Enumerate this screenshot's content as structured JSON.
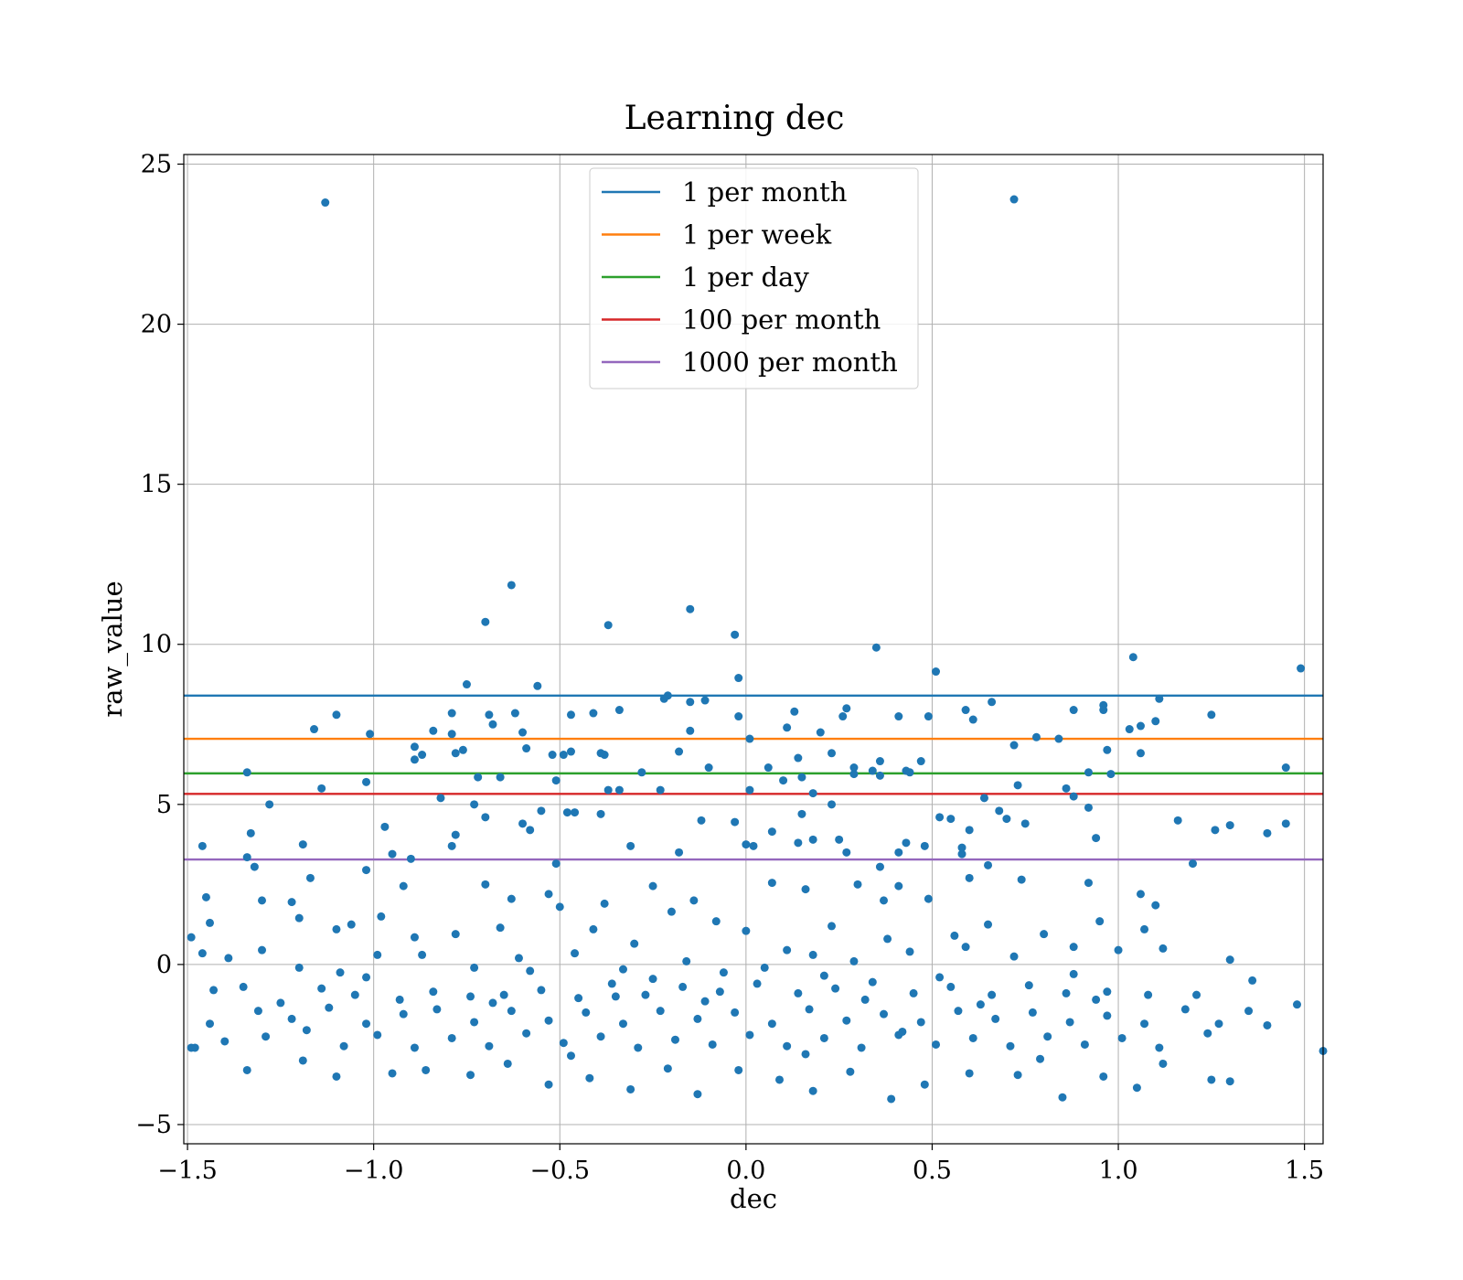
{
  "chart_data": {
    "type": "scatter",
    "title": "Learning dec",
    "xlabel": "dec",
    "ylabel": "raw_value",
    "xlim": [
      -1.51,
      1.55
    ],
    "ylim": [
      -5.6,
      25.3
    ],
    "xticks": [
      -1.5,
      -1.0,
      -0.5,
      0.0,
      0.5,
      1.0,
      1.5
    ],
    "xtick_labels": [
      "−1.5",
      "−1.0",
      "−0.5",
      "0.0",
      "0.5",
      "1.0",
      "1.5"
    ],
    "yticks": [
      -5,
      0,
      5,
      10,
      15,
      20,
      25
    ],
    "ytick_labels": [
      "−5",
      "0",
      "5",
      "10",
      "15",
      "20",
      "25"
    ],
    "grid": true,
    "legend_position": "top-center",
    "point_color": "#1f77b4",
    "hlines": [
      {
        "name": "1 per month",
        "y": 8.4,
        "color": "#1f77b4"
      },
      {
        "name": "1 per week",
        "y": 7.05,
        "color": "#ff7f0e"
      },
      {
        "name": "1 per day",
        "y": 5.97,
        "color": "#2ca02c"
      },
      {
        "name": "100 per month",
        "y": 5.33,
        "color": "#d62728"
      },
      {
        "name": "1000 per month",
        "y": 3.28,
        "color": "#9467bd"
      }
    ],
    "points": [
      [
        -1.13,
        23.8
      ],
      [
        0.72,
        23.9
      ],
      [
        -0.63,
        11.85
      ],
      [
        -0.7,
        10.7
      ],
      [
        -0.37,
        10.6
      ],
      [
        -0.15,
        11.1
      ],
      [
        -0.03,
        10.3
      ],
      [
        0.35,
        9.9
      ],
      [
        0.51,
        9.15
      ],
      [
        1.04,
        9.6
      ],
      [
        1.49,
        9.25
      ],
      [
        -0.02,
        8.95
      ],
      [
        -0.75,
        8.75
      ],
      [
        -0.56,
        8.7
      ],
      [
        -0.21,
        8.4
      ],
      [
        -0.22,
        8.3
      ],
      [
        -0.15,
        8.2
      ],
      [
        -0.11,
        8.25
      ],
      [
        0.27,
        8.0
      ],
      [
        0.66,
        8.2
      ],
      [
        0.96,
        8.1
      ],
      [
        1.11,
        8.3
      ],
      [
        -1.1,
        7.8
      ],
      [
        -0.79,
        7.85
      ],
      [
        -0.69,
        7.8
      ],
      [
        -0.62,
        7.85
      ],
      [
        -0.47,
        7.8
      ],
      [
        -0.41,
        7.85
      ],
      [
        -0.34,
        7.95
      ],
      [
        -0.02,
        7.75
      ],
      [
        0.13,
        7.9
      ],
      [
        0.26,
        7.75
      ],
      [
        0.41,
        7.75
      ],
      [
        0.49,
        7.75
      ],
      [
        0.59,
        7.95
      ],
      [
        0.61,
        7.65
      ],
      [
        0.88,
        7.95
      ],
      [
        0.96,
        7.95
      ],
      [
        1.25,
        7.8
      ],
      [
        -1.16,
        7.35
      ],
      [
        -1.01,
        7.2
      ],
      [
        -0.84,
        7.3
      ],
      [
        -0.79,
        7.2
      ],
      [
        -0.68,
        7.5
      ],
      [
        -0.6,
        7.25
      ],
      [
        -0.47,
        6.65
      ],
      [
        -0.38,
        6.55
      ],
      [
        -0.15,
        7.3
      ],
      [
        0.01,
        7.05
      ],
      [
        0.11,
        7.4
      ],
      [
        0.2,
        7.25
      ],
      [
        0.72,
        6.85
      ],
      [
        0.78,
        7.1
      ],
      [
        0.84,
        7.05
      ],
      [
        1.03,
        7.35
      ],
      [
        1.06,
        7.45
      ],
      [
        1.1,
        7.6
      ],
      [
        -0.89,
        6.8
      ],
      [
        -0.87,
        6.55
      ],
      [
        -0.78,
        6.6
      ],
      [
        -0.76,
        6.7
      ],
      [
        -0.59,
        6.75
      ],
      [
        -0.52,
        6.55
      ],
      [
        -0.49,
        6.55
      ],
      [
        -0.39,
        6.6
      ],
      [
        -0.18,
        6.65
      ],
      [
        0.06,
        6.15
      ],
      [
        0.14,
        6.45
      ],
      [
        0.23,
        6.6
      ],
      [
        0.29,
        6.15
      ],
      [
        0.36,
        6.35
      ],
      [
        0.43,
        6.05
      ],
      [
        0.47,
        6.35
      ],
      [
        0.97,
        6.7
      ],
      [
        1.06,
        6.6
      ],
      [
        1.45,
        6.15
      ],
      [
        -1.34,
        6.0
      ],
      [
        -0.89,
        6.4
      ],
      [
        -0.66,
        5.85
      ],
      [
        -0.51,
        5.75
      ],
      [
        -0.28,
        6.0
      ],
      [
        -0.1,
        6.15
      ],
      [
        0.1,
        5.75
      ],
      [
        0.15,
        5.85
      ],
      [
        0.29,
        5.95
      ],
      [
        0.34,
        6.05
      ],
      [
        0.44,
        6.0
      ],
      [
        0.92,
        6.0
      ],
      [
        0.98,
        5.95
      ],
      [
        -1.14,
        5.5
      ],
      [
        -1.02,
        5.7
      ],
      [
        -0.82,
        5.2
      ],
      [
        -0.72,
        5.85
      ],
      [
        -0.37,
        5.45
      ],
      [
        -0.34,
        5.45
      ],
      [
        -0.23,
        5.45
      ],
      [
        0.01,
        5.45
      ],
      [
        0.18,
        5.35
      ],
      [
        0.36,
        5.9
      ],
      [
        0.73,
        5.6
      ],
      [
        0.86,
        5.5
      ],
      [
        0.88,
        5.25
      ],
      [
        -1.28,
        5.0
      ],
      [
        -0.73,
        5.0
      ],
      [
        -0.7,
        4.6
      ],
      [
        -0.55,
        4.8
      ],
      [
        -0.48,
        4.75
      ],
      [
        -0.46,
        4.75
      ],
      [
        -0.39,
        4.7
      ],
      [
        -0.12,
        4.5
      ],
      [
        -0.03,
        4.45
      ],
      [
        0.15,
        4.7
      ],
      [
        0.23,
        5.0
      ],
      [
        0.52,
        4.6
      ],
      [
        0.55,
        4.55
      ],
      [
        0.64,
        5.2
      ],
      [
        0.68,
        4.8
      ],
      [
        0.7,
        4.55
      ],
      [
        0.75,
        4.4
      ],
      [
        0.92,
        4.9
      ],
      [
        1.16,
        4.5
      ],
      [
        1.26,
        4.2
      ],
      [
        1.3,
        4.35
      ],
      [
        1.4,
        4.1
      ],
      [
        1.45,
        4.4
      ],
      [
        -1.46,
        3.7
      ],
      [
        -1.33,
        4.1
      ],
      [
        -1.19,
        3.75
      ],
      [
        -0.97,
        4.3
      ],
      [
        -0.79,
        3.7
      ],
      [
        -0.78,
        4.05
      ],
      [
        -0.6,
        4.4
      ],
      [
        -0.58,
        4.2
      ],
      [
        -0.31,
        3.7
      ],
      [
        -0.18,
        3.5
      ],
      [
        0.07,
        4.15
      ],
      [
        0.18,
        3.9
      ],
      [
        0.25,
        3.9
      ],
      [
        0.41,
        3.5
      ],
      [
        0.43,
        3.8
      ],
      [
        0.6,
        4.2
      ],
      [
        0.48,
        3.7
      ],
      [
        0.58,
        3.45
      ],
      [
        0.94,
        3.95
      ],
      [
        -1.34,
        3.35
      ],
      [
        -1.32,
        3.05
      ],
      [
        -1.02,
        2.95
      ],
      [
        -0.95,
        3.45
      ],
      [
        -0.9,
        3.3
      ],
      [
        -0.51,
        3.15
      ],
      [
        0.0,
        3.75
      ],
      [
        0.02,
        3.7
      ],
      [
        0.14,
        3.8
      ],
      [
        0.27,
        3.5
      ],
      [
        0.36,
        3.05
      ],
      [
        0.58,
        3.65
      ],
      [
        0.65,
        3.1
      ],
      [
        1.2,
        3.15
      ],
      [
        -1.45,
        2.1
      ],
      [
        -1.3,
        2.0
      ],
      [
        -1.17,
        2.7
      ],
      [
        -0.92,
        2.45
      ],
      [
        -0.7,
        2.5
      ],
      [
        -0.63,
        2.05
      ],
      [
        -0.53,
        2.2
      ],
      [
        -0.38,
        1.9
      ],
      [
        -0.25,
        2.45
      ],
      [
        -0.14,
        2.0
      ],
      [
        0.07,
        2.55
      ],
      [
        0.16,
        2.35
      ],
      [
        0.3,
        2.5
      ],
      [
        0.37,
        2.0
      ],
      [
        0.41,
        2.45
      ],
      [
        0.49,
        2.05
      ],
      [
        0.6,
        2.7
      ],
      [
        0.74,
        2.65
      ],
      [
        0.92,
        2.55
      ],
      [
        1.06,
        2.2
      ],
      [
        1.1,
        1.85
      ],
      [
        -1.49,
        0.85
      ],
      [
        -1.44,
        1.3
      ],
      [
        -1.22,
        1.95
      ],
      [
        -1.2,
        1.45
      ],
      [
        -1.1,
        1.1
      ],
      [
        -1.06,
        1.25
      ],
      [
        -0.98,
        1.5
      ],
      [
        -0.89,
        0.85
      ],
      [
        -0.78,
        0.95
      ],
      [
        -0.66,
        1.15
      ],
      [
        -0.5,
        1.8
      ],
      [
        -0.41,
        1.1
      ],
      [
        -0.3,
        0.65
      ],
      [
        -0.2,
        1.65
      ],
      [
        -0.08,
        1.35
      ],
      [
        0.0,
        1.05
      ],
      [
        0.11,
        0.45
      ],
      [
        0.23,
        1.2
      ],
      [
        0.38,
        0.8
      ],
      [
        0.56,
        0.9
      ],
      [
        0.65,
        1.25
      ],
      [
        0.8,
        0.95
      ],
      [
        0.95,
        1.35
      ],
      [
        1.07,
        1.1
      ],
      [
        -1.46,
        0.35
      ],
      [
        -1.39,
        0.2
      ],
      [
        -1.3,
        0.45
      ],
      [
        -1.2,
        -0.1
      ],
      [
        -1.09,
        -0.25
      ],
      [
        -0.99,
        0.3
      ],
      [
        -0.87,
        0.3
      ],
      [
        -0.73,
        -0.1
      ],
      [
        -0.61,
        0.2
      ],
      [
        -0.46,
        0.35
      ],
      [
        -0.33,
        -0.15
      ],
      [
        -0.16,
        0.1
      ],
      [
        -0.06,
        -0.25
      ],
      [
        0.05,
        -0.1
      ],
      [
        0.18,
        0.3
      ],
      [
        0.29,
        0.1
      ],
      [
        0.44,
        0.4
      ],
      [
        0.59,
        0.55
      ],
      [
        0.72,
        0.25
      ],
      [
        0.88,
        0.55
      ],
      [
        1.0,
        0.45
      ],
      [
        1.12,
        0.5
      ],
      [
        1.3,
        0.15
      ],
      [
        -1.43,
        -0.8
      ],
      [
        -1.35,
        -0.7
      ],
      [
        -1.25,
        -1.2
      ],
      [
        -1.14,
        -0.75
      ],
      [
        -1.05,
        -0.95
      ],
      [
        -0.93,
        -1.1
      ],
      [
        -0.84,
        -0.85
      ],
      [
        -0.74,
        -1.0
      ],
      [
        -0.65,
        -0.95
      ],
      [
        -0.55,
        -0.8
      ],
      [
        -0.45,
        -1.05
      ],
      [
        -0.36,
        -0.6
      ],
      [
        -0.27,
        -0.95
      ],
      [
        -0.17,
        -0.7
      ],
      [
        -0.07,
        -0.85
      ],
      [
        0.03,
        -0.6
      ],
      [
        0.14,
        -0.9
      ],
      [
        0.24,
        -0.75
      ],
      [
        0.34,
        -0.55
      ],
      [
        0.45,
        -0.9
      ],
      [
        0.55,
        -0.7
      ],
      [
        0.66,
        -0.95
      ],
      [
        0.76,
        -0.65
      ],
      [
        0.86,
        -0.9
      ],
      [
        0.97,
        -0.85
      ],
      [
        1.08,
        -0.95
      ],
      [
        1.21,
        -0.95
      ],
      [
        1.36,
        -0.5
      ],
      [
        -1.44,
        -1.85
      ],
      [
        -1.31,
        -1.45
      ],
      [
        -1.22,
        -1.7
      ],
      [
        -1.12,
        -1.35
      ],
      [
        -1.02,
        -1.85
      ],
      [
        -0.92,
        -1.55
      ],
      [
        -0.83,
        -1.4
      ],
      [
        -0.73,
        -1.8
      ],
      [
        -0.63,
        -1.45
      ],
      [
        -0.53,
        -1.75
      ],
      [
        -0.43,
        -1.5
      ],
      [
        -0.33,
        -1.85
      ],
      [
        -0.23,
        -1.45
      ],
      [
        -0.13,
        -1.7
      ],
      [
        -0.03,
        -1.5
      ],
      [
        0.07,
        -1.85
      ],
      [
        0.17,
        -1.4
      ],
      [
        0.27,
        -1.75
      ],
      [
        0.37,
        -1.55
      ],
      [
        0.47,
        -1.8
      ],
      [
        0.57,
        -1.45
      ],
      [
        0.67,
        -1.7
      ],
      [
        0.77,
        -1.5
      ],
      [
        0.87,
        -1.8
      ],
      [
        0.97,
        -1.6
      ],
      [
        1.07,
        -1.85
      ],
      [
        1.18,
        -1.4
      ],
      [
        1.27,
        -1.85
      ],
      [
        1.35,
        -1.45
      ],
      [
        1.48,
        -1.25
      ],
      [
        -1.48,
        -2.6
      ],
      [
        -1.4,
        -2.4
      ],
      [
        -1.29,
        -2.25
      ],
      [
        -1.18,
        -2.05
      ],
      [
        -1.08,
        -2.55
      ],
      [
        -0.99,
        -2.2
      ],
      [
        -0.89,
        -2.6
      ],
      [
        -0.79,
        -2.3
      ],
      [
        -0.69,
        -2.55
      ],
      [
        -0.59,
        -2.15
      ],
      [
        -0.49,
        -2.45
      ],
      [
        -0.39,
        -2.25
      ],
      [
        -0.29,
        -2.6
      ],
      [
        -0.19,
        -2.35
      ],
      [
        -0.09,
        -2.5
      ],
      [
        0.01,
        -2.2
      ],
      [
        0.11,
        -2.55
      ],
      [
        0.21,
        -2.3
      ],
      [
        0.31,
        -2.6
      ],
      [
        0.41,
        -2.2
      ],
      [
        0.51,
        -2.5
      ],
      [
        0.61,
        -2.3
      ],
      [
        0.71,
        -2.55
      ],
      [
        0.81,
        -2.25
      ],
      [
        0.91,
        -2.5
      ],
      [
        1.01,
        -2.3
      ],
      [
        1.11,
        -2.6
      ],
      [
        1.24,
        -2.15
      ],
      [
        1.4,
        -1.9
      ],
      [
        1.55,
        -2.7
      ],
      [
        -1.34,
        -3.3
      ],
      [
        -1.19,
        -3.0
      ],
      [
        -1.1,
        -3.5
      ],
      [
        -0.95,
        -3.4
      ],
      [
        -0.86,
        -3.3
      ],
      [
        -0.74,
        -3.45
      ],
      [
        -0.64,
        -3.1
      ],
      [
        -0.53,
        -3.75
      ],
      [
        -0.42,
        -3.55
      ],
      [
        -0.31,
        -3.9
      ],
      [
        -0.21,
        -3.25
      ],
      [
        -0.13,
        -4.05
      ],
      [
        -0.02,
        -3.3
      ],
      [
        0.09,
        -3.6
      ],
      [
        0.18,
        -3.95
      ],
      [
        0.28,
        -3.35
      ],
      [
        0.39,
        -4.2
      ],
      [
        0.48,
        -3.75
      ],
      [
        0.6,
        -3.4
      ],
      [
        0.73,
        -3.45
      ],
      [
        0.85,
        -4.15
      ],
      [
        0.96,
        -3.5
      ],
      [
        1.05,
        -3.85
      ],
      [
        1.12,
        -3.1
      ],
      [
        1.25,
        -3.6
      ],
      [
        1.3,
        -3.65
      ],
      [
        -1.49,
        -2.6
      ],
      [
        -0.68,
        -1.2
      ],
      [
        -0.35,
        -1.0
      ],
      [
        0.32,
        -1.1
      ],
      [
        0.63,
        -1.25
      ],
      [
        0.94,
        -1.1
      ],
      [
        -0.58,
        -0.2
      ],
      [
        0.21,
        -0.35
      ],
      [
        0.52,
        -0.4
      ],
      [
        -0.11,
        -1.15
      ],
      [
        0.42,
        -2.1
      ],
      [
        -0.47,
        -2.85
      ],
      [
        0.16,
        -2.8
      ],
      [
        0.79,
        -2.95
      ],
      [
        -1.02,
        -0.4
      ],
      [
        -0.25,
        -0.45
      ],
      [
        0.88,
        -0.3
      ]
    ]
  }
}
